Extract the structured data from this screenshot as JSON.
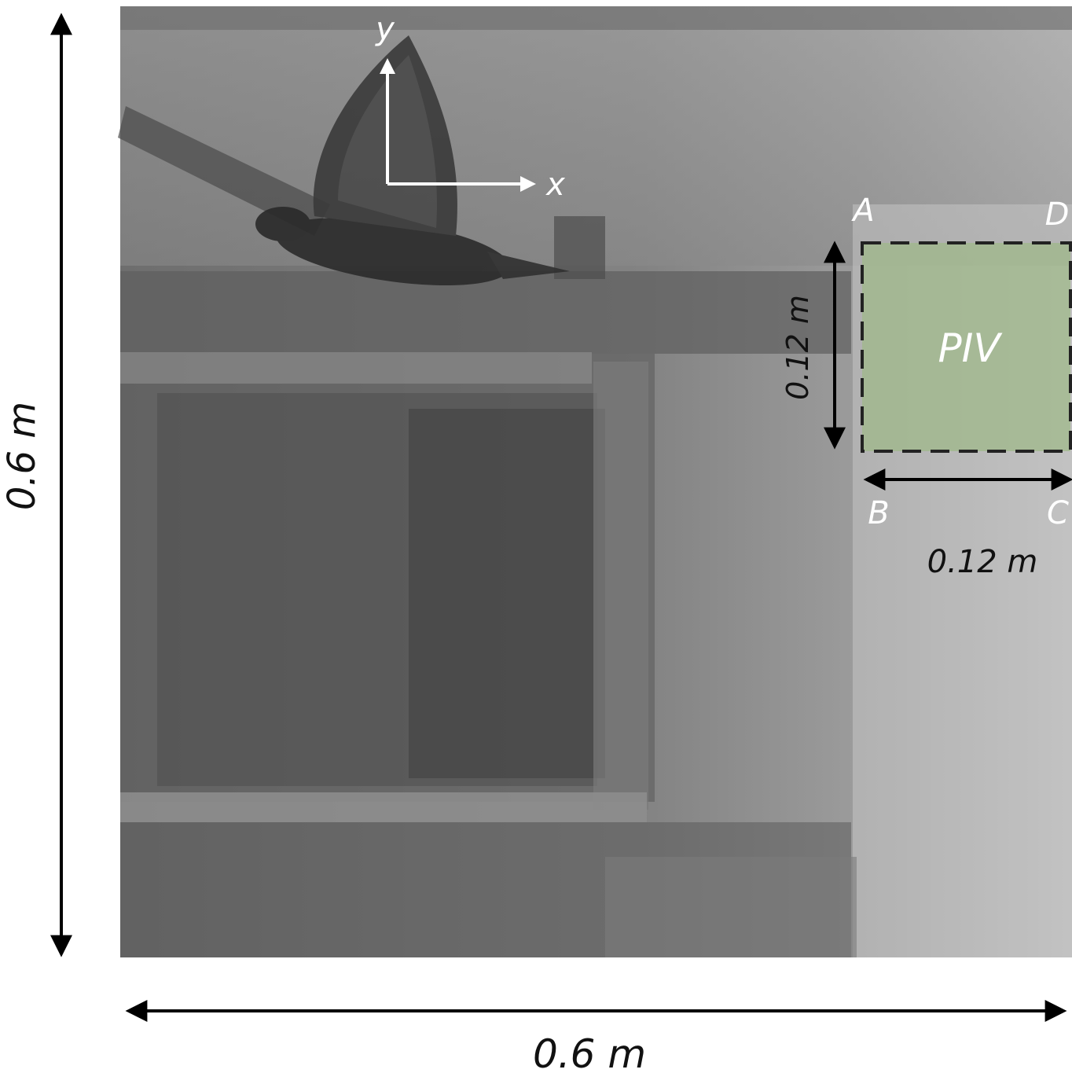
{
  "figure": {
    "photo_description_hidden": "",
    "dimensions": {
      "total_width": "0.6 m",
      "total_height": "0.6 m",
      "piv_width": "0.12 m",
      "piv_height": "0.12 m"
    },
    "axes": {
      "x_label": "x",
      "y_label": "y"
    },
    "piv": {
      "label": "PIV",
      "corner_a": "A",
      "corner_b": "B",
      "corner_c": "C",
      "corner_d": "D",
      "fill_color": "#9fb88a"
    },
    "colors": {
      "photo_background": "#8c8c8c",
      "arrows": "#000000",
      "labels_on_photo": "#ffffff"
    }
  }
}
